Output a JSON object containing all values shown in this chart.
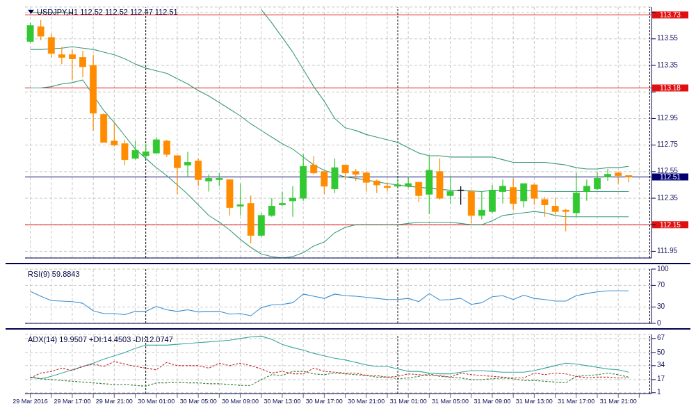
{
  "chart_data": [
    {
      "type": "candlestick",
      "title": "USDJPY,H1  112.52 112.52 112.47 112.51",
      "x": [
        "2016-03-29T13:00",
        "2016-03-29T14:00",
        "2016-03-29T15:00",
        "2016-03-29T16:00",
        "2016-03-29T17:00",
        "2016-03-29T18:00",
        "2016-03-29T19:00",
        "2016-03-29T20:00",
        "2016-03-29T21:00",
        "2016-03-29T22:00",
        "2016-03-29T23:00",
        "2016-03-30T00:00",
        "2016-03-30T01:00",
        "2016-03-30T02:00",
        "2016-03-30T03:00",
        "2016-03-30T04:00",
        "2016-03-30T05:00",
        "2016-03-30T06:00",
        "2016-03-30T07:00",
        "2016-03-30T08:00",
        "2016-03-30T09:00",
        "2016-03-30T10:00",
        "2016-03-30T11:00",
        "2016-03-30T12:00",
        "2016-03-30T13:00",
        "2016-03-30T14:00",
        "2016-03-30T15:00",
        "2016-03-30T16:00",
        "2016-03-30T17:00",
        "2016-03-30T18:00",
        "2016-03-30T19:00",
        "2016-03-30T20:00",
        "2016-03-30T21:00",
        "2016-03-30T22:00",
        "2016-03-30T23:00",
        "2016-03-31T00:00",
        "2016-03-31T01:00",
        "2016-03-31T02:00",
        "2016-03-31T03:00",
        "2016-03-31T04:00",
        "2016-03-31T05:00",
        "2016-03-31T06:00",
        "2016-03-31T07:00",
        "2016-03-31T08:00",
        "2016-03-31T09:00",
        "2016-03-31T10:00",
        "2016-03-31T11:00",
        "2016-03-31T12:00",
        "2016-03-31T13:00",
        "2016-03-31T14:00",
        "2016-03-31T15:00",
        "2016-03-31T16:00",
        "2016-03-31T17:00",
        "2016-03-31T18:00",
        "2016-03-31T19:00",
        "2016-03-31T20:00",
        "2016-03-31T21:00",
        "2016-03-31T22:00"
      ],
      "ohlc": [
        [
          113.53,
          113.67,
          113.52,
          113.65
        ],
        [
          113.64,
          113.69,
          113.54,
          113.57
        ],
        [
          113.56,
          113.59,
          113.41,
          113.44
        ],
        [
          113.43,
          113.49,
          113.36,
          113.41
        ],
        [
          113.43,
          113.47,
          113.24,
          113.4
        ],
        [
          113.41,
          113.46,
          113.26,
          113.34
        ],
        [
          113.35,
          113.43,
          112.86,
          112.99
        ],
        [
          112.98,
          112.99,
          112.77,
          112.77
        ],
        [
          112.78,
          112.92,
          112.74,
          112.75
        ],
        [
          112.76,
          112.79,
          112.6,
          112.64
        ],
        [
          112.65,
          112.78,
          112.64,
          112.71
        ],
        [
          112.67,
          112.76,
          112.65,
          112.7
        ],
        [
          112.69,
          112.81,
          112.69,
          112.79
        ],
        [
          112.78,
          112.79,
          112.66,
          112.68
        ],
        [
          112.67,
          112.67,
          112.38,
          112.58
        ],
        [
          112.6,
          112.7,
          112.51,
          112.62
        ],
        [
          112.63,
          112.65,
          112.44,
          112.49
        ],
        [
          112.48,
          112.53,
          112.4,
          112.5
        ],
        [
          112.49,
          112.54,
          112.44,
          112.5
        ],
        [
          112.49,
          112.49,
          112.22,
          112.28
        ],
        [
          112.29,
          112.46,
          112.22,
          112.3
        ],
        [
          112.31,
          112.37,
          112.01,
          112.07
        ],
        [
          112.07,
          112.24,
          112.06,
          112.22
        ],
        [
          112.22,
          112.35,
          112.21,
          112.29
        ],
        [
          112.3,
          112.4,
          112.29,
          112.31
        ],
        [
          112.33,
          112.44,
          112.21,
          112.35
        ],
        [
          112.35,
          112.68,
          112.33,
          112.59
        ],
        [
          112.6,
          112.67,
          112.53,
          112.54
        ],
        [
          112.55,
          112.55,
          112.38,
          112.44
        ],
        [
          112.42,
          112.65,
          112.39,
          112.58
        ],
        [
          112.6,
          112.6,
          112.49,
          112.54
        ],
        [
          112.55,
          112.57,
          112.48,
          112.53
        ],
        [
          112.54,
          112.55,
          112.4,
          112.47
        ],
        [
          112.48,
          112.49,
          112.39,
          112.45
        ],
        [
          112.44,
          112.47,
          112.4,
          112.43
        ],
        [
          112.44,
          112.5,
          112.44,
          112.45
        ],
        [
          112.44,
          112.51,
          112.43,
          112.46
        ],
        [
          112.47,
          112.47,
          112.32,
          112.37
        ],
        [
          112.38,
          112.67,
          112.23,
          112.56
        ],
        [
          112.55,
          112.65,
          112.34,
          112.35
        ],
        [
          112.37,
          112.52,
          112.31,
          112.4
        ],
        [
          112.41,
          112.44,
          112.3,
          112.41
        ],
        [
          112.4,
          112.4,
          112.16,
          112.22
        ],
        [
          112.22,
          112.4,
          112.19,
          112.26
        ],
        [
          112.25,
          112.45,
          112.24,
          112.41
        ],
        [
          112.4,
          112.49,
          112.31,
          112.44
        ],
        [
          112.43,
          112.5,
          112.26,
          112.31
        ],
        [
          112.33,
          112.46,
          112.28,
          112.46
        ],
        [
          112.45,
          112.46,
          112.3,
          112.35
        ],
        [
          112.34,
          112.36,
          112.21,
          112.3
        ],
        [
          112.29,
          112.35,
          112.22,
          112.25
        ],
        [
          112.26,
          112.27,
          112.1,
          112.25
        ],
        [
          112.24,
          112.54,
          112.21,
          112.39
        ],
        [
          112.4,
          112.49,
          112.33,
          112.44
        ],
        [
          112.42,
          112.55,
          112.41,
          112.5
        ],
        [
          112.51,
          112.57,
          112.48,
          112.53
        ],
        [
          112.54,
          112.55,
          112.46,
          112.52
        ],
        [
          112.52,
          112.52,
          112.47,
          112.51
        ]
      ],
      "colors": [
        "#32c832",
        "#ff8c00",
        "#ff8c00",
        "#ff8c00",
        "#ff8c00",
        "#ff8c00",
        "#ff8c00",
        "#ff8c00",
        "#ff8c00",
        "#ff8c00",
        "#32c832",
        "#32c832",
        "#32c832",
        "#ff8c00",
        "#ff8c00",
        "#32c832",
        "#ff8c00",
        "#32c832",
        "#32c832",
        "#ff8c00",
        "#32c832",
        "#ff8c00",
        "#32c832",
        "#32c832",
        "#32c832",
        "#32c832",
        "#32c832",
        "#ff8c00",
        "#ff8c00",
        "#32c832",
        "#ff8c00",
        "#ff8c00",
        "#ff8c00",
        "#ff8c00",
        "#ff8c00",
        "#32c832",
        "#32c832",
        "#ff8c00",
        "#32c832",
        "#ff8c00",
        "#32c832",
        "#000000",
        "#ff8c00",
        "#32c832",
        "#32c832",
        "#32c832",
        "#ff8c00",
        "#32c832",
        "#ff8c00",
        "#ff8c00",
        "#ff8c00",
        "#ff8c00",
        "#32c832",
        "#32c832",
        "#32c832",
        "#32c832",
        "#ff8c00",
        "#ff8c00"
      ],
      "series": [
        {
          "type": "line",
          "color": "#3a9a78",
          "values": [
            113.75,
            113.75,
            113.75,
            113.75,
            113.74,
            null,
            null,
            null,
            null,
            null,
            null,
            null,
            null,
            null,
            null,
            null,
            null,
            null,
            null,
            null,
            null,
            null,
            113.77,
            113.67,
            113.56,
            113.45,
            113.32,
            113.19,
            113.08,
            112.95,
            112.88,
            112.86,
            112.83,
            112.81,
            112.79,
            112.77,
            112.73,
            112.69,
            112.67,
            112.67,
            112.66,
            112.66,
            112.66,
            112.66,
            112.66,
            112.64,
            112.62,
            112.62,
            112.62,
            112.62,
            112.61,
            112.6,
            112.58,
            112.57,
            112.57,
            112.58,
            112.58,
            112.59
          ]
        },
        {
          "type": "line",
          "color": "#3a9a78",
          "values": [
            113.47,
            113.47,
            null,
            113.48,
            113.49,
            113.48,
            113.47,
            113.45,
            113.43,
            113.4,
            113.36,
            113.33,
            113.31,
            113.29,
            113.25,
            113.21,
            113.16,
            113.12,
            113.07,
            113.02,
            112.97,
            112.91,
            112.86,
            112.81,
            112.76,
            112.72,
            112.66,
            112.6,
            112.56,
            null,
            112.51,
            112.5,
            null,
            null,
            112.46,
            112.45,
            112.44,
            null,
            null,
            null,
            112.41,
            112.41,
            null,
            112.4,
            112.41,
            112.41,
            null,
            112.41,
            null,
            112.4,
            112.4,
            112.4,
            112.4,
            112.4,
            112.4,
            112.4,
            112.4,
            112.4
          ]
        },
        {
          "type": "line",
          "color": "#3a9a78",
          "values": [
            113.18,
            113.18,
            113.19,
            113.21,
            113.22,
            113.24,
            null,
            113.01,
            112.92,
            112.82,
            112.72,
            112.65,
            112.58,
            112.52,
            112.45,
            112.38,
            112.3,
            112.22,
            112.17,
            112.11,
            112.04,
            111.98,
            111.93,
            111.91,
            111.9,
            111.91,
            111.94,
            111.99,
            112.02,
            112.09,
            112.13,
            112.15,
            112.15,
            112.15,
            112.15,
            112.15,
            112.16,
            112.17,
            112.17,
            112.17,
            112.17,
            112.16,
            112.15,
            112.15,
            112.18,
            112.22,
            112.23,
            112.24,
            112.25,
            112.24,
            112.22,
            112.21,
            112.21,
            112.21,
            112.21,
            112.21,
            112.21,
            112.21
          ]
        }
      ],
      "xlim": [
        "2016-03-29T12:30",
        "2016-04-01T00:10"
      ],
      "xticks": [
        {
          "value": "2016-03-29T13:00",
          "label": null
        },
        {
          "value": "2016-03-29T15:00",
          "label": null
        },
        {
          "value": "2016-03-29T17:00",
          "label": null
        },
        {
          "value": "2016-03-29T19:00",
          "label": null
        },
        {
          "value": "2016-03-29T21:00",
          "label": null
        },
        {
          "value": "2016-03-29T23:00",
          "label": null
        },
        {
          "value": "2016-03-30T01:00",
          "label": null
        },
        {
          "value": "2016-03-30T03:00",
          "label": null
        },
        {
          "value": "2016-03-30T05:00",
          "label": null
        },
        {
          "value": "2016-03-30T07:00",
          "label": null
        },
        {
          "value": "2016-03-30T09:00",
          "label": null
        },
        {
          "value": "2016-03-30T11:00",
          "label": null
        },
        {
          "value": "2016-03-30T13:00",
          "label": null
        },
        {
          "value": "2016-03-30T15:00",
          "label": null
        },
        {
          "value": "2016-03-30T17:00",
          "label": null
        },
        {
          "value": "2016-03-30T19:00",
          "label": null
        },
        {
          "value": "2016-03-30T21:00",
          "label": null
        },
        {
          "value": "2016-03-30T23:00",
          "label": null
        },
        {
          "value": "2016-03-31T01:00",
          "label": null
        },
        {
          "value": "2016-03-31T03:00",
          "label": null
        },
        {
          "value": "2016-03-31T05:00",
          "label": null
        },
        {
          "value": "2016-03-31T07:00",
          "label": null
        },
        {
          "value": "2016-03-31T09:00",
          "label": null
        },
        {
          "value": "2016-03-31T11:00",
          "label": null
        },
        {
          "value": "2016-03-31T13:00",
          "label": null
        },
        {
          "value": "2016-03-31T15:00",
          "label": null
        },
        {
          "value": "2016-03-31T17:00",
          "label": null
        },
        {
          "value": "2016-03-31T19:00",
          "label": null
        },
        {
          "value": "2016-03-31T21:00",
          "label": null
        },
        {
          "value": "2016-03-31T23:00",
          "label": null
        }
      ],
      "ylim": [
        111.9,
        113.79
      ],
      "yticks": [
        111.95,
        {
          "value": 112.15,
          "label": null
        },
        112.35,
        112.55,
        112.75,
        112.95,
        {
          "value": 113.15,
          "label": null
        },
        113.35,
        113.55,
        {
          "value": 113.75,
          "label": null
        }
      ],
      "grid": true,
      "tick_labels": "y",
      "ref_lines": [
        {
          "axis": "y",
          "value": 113.73,
          "label": "113.73",
          "color": "#e01010"
        },
        {
          "axis": "y",
          "value": 113.18,
          "label": "113.18",
          "color": "#e01010"
        },
        {
          "axis": "y",
          "value": 112.15,
          "label": "112.15",
          "color": "#e01010"
        },
        {
          "axis": "y",
          "value": 112.51,
          "label": "112.51",
          "color": "#000070"
        },
        {
          "axis": "x",
          "value": "2016-03-30T00:00",
          "color": "#000000",
          "line_style": "dashed"
        },
        {
          "axis": "x",
          "value": "2016-03-31T00:00",
          "color": "#000000",
          "line_style": "dashed"
        },
        {
          "axis": "x",
          "value": "2016-04-01T00:00",
          "color": "#000000",
          "line_style": "dashed"
        }
      ]
    },
    {
      "type": "line",
      "title": "RSI(9) 59.8843",
      "x": [
        "2016-03-29T13:00",
        "2016-03-29T14:00",
        "2016-03-29T15:00",
        "2016-03-29T16:00",
        "2016-03-29T17:00",
        "2016-03-29T18:00",
        "2016-03-29T19:00",
        "2016-03-29T20:00",
        "2016-03-29T21:00",
        "2016-03-29T22:00",
        "2016-03-29T23:00",
        "2016-03-30T00:00",
        "2016-03-30T01:00",
        "2016-03-30T02:00",
        "2016-03-30T03:00",
        "2016-03-30T04:00",
        "2016-03-30T05:00",
        "2016-03-30T06:00",
        "2016-03-30T07:00",
        "2016-03-30T08:00",
        "2016-03-30T09:00",
        "2016-03-30T10:00",
        "2016-03-30T11:00",
        "2016-03-30T12:00",
        "2016-03-30T13:00",
        "2016-03-30T14:00",
        "2016-03-30T15:00",
        "2016-03-30T16:00",
        "2016-03-30T17:00",
        "2016-03-30T18:00",
        "2016-03-30T19:00",
        "2016-03-30T20:00",
        "2016-03-30T21:00",
        "2016-03-30T22:00",
        "2016-03-30T23:00",
        "2016-03-31T00:00",
        "2016-03-31T01:00",
        "2016-03-31T02:00",
        "2016-03-31T03:00",
        "2016-03-31T04:00",
        "2016-03-31T05:00",
        "2016-03-31T06:00",
        "2016-03-31T07:00",
        "2016-03-31T08:00",
        "2016-03-31T09:00",
        "2016-03-31T10:00",
        "2016-03-31T11:00",
        "2016-03-31T12:00",
        "2016-03-31T13:00",
        "2016-03-31T14:00",
        "2016-03-31T15:00",
        "2016-03-31T16:00",
        "2016-03-31T17:00",
        "2016-03-31T18:00",
        "2016-03-31T19:00",
        "2016-03-31T20:00",
        "2016-03-31T21:00",
        "2016-03-31T22:00"
      ],
      "series": [
        {
          "color": "#3d8fd0",
          "values": [
            59,
            50,
            42,
            41,
            40,
            37,
            23,
            18,
            18,
            16,
            22,
            22,
            31,
            25,
            22,
            25,
            21,
            22,
            22,
            17,
            18,
            14,
            29,
            34,
            35,
            38,
            54,
            50,
            46,
            54,
            51,
            50,
            48,
            46,
            44,
            44,
            46,
            40,
            55,
            43,
            44,
            46,
            35,
            38,
            49,
            51,
            44,
            52,
            46,
            44,
            41,
            41,
            51,
            55,
            58,
            60,
            60,
            60
          ]
        }
      ],
      "xlim": [
        "2016-03-29T12:30",
        "2016-04-01T00:10"
      ],
      "xticks": [
        {
          "value": "2016-03-29T13:00",
          "label": null
        },
        {
          "value": "2016-03-29T15:00",
          "label": null
        },
        {
          "value": "2016-03-29T17:00",
          "label": null
        },
        {
          "value": "2016-03-29T19:00",
          "label": null
        },
        {
          "value": "2016-03-29T21:00",
          "label": null
        },
        {
          "value": "2016-03-29T23:00",
          "label": null
        },
        {
          "value": "2016-03-30T01:00",
          "label": null
        },
        {
          "value": "2016-03-30T03:00",
          "label": null
        },
        {
          "value": "2016-03-30T05:00",
          "label": null
        },
        {
          "value": "2016-03-30T07:00",
          "label": null
        },
        {
          "value": "2016-03-30T09:00",
          "label": null
        },
        {
          "value": "2016-03-30T11:00",
          "label": null
        },
        {
          "value": "2016-03-30T13:00",
          "label": null
        },
        {
          "value": "2016-03-30T15:00",
          "label": null
        },
        {
          "value": "2016-03-30T17:00",
          "label": null
        },
        {
          "value": "2016-03-30T19:00",
          "label": null
        },
        {
          "value": "2016-03-30T21:00",
          "label": null
        },
        {
          "value": "2016-03-30T23:00",
          "label": null
        },
        {
          "value": "2016-03-31T01:00",
          "label": null
        },
        {
          "value": "2016-03-31T03:00",
          "label": null
        },
        {
          "value": "2016-03-31T05:00",
          "label": null
        },
        {
          "value": "2016-03-31T07:00",
          "label": null
        },
        {
          "value": "2016-03-31T09:00",
          "label": null
        },
        {
          "value": "2016-03-31T11:00",
          "label": null
        },
        {
          "value": "2016-03-31T13:00",
          "label": null
        },
        {
          "value": "2016-03-31T15:00",
          "label": null
        },
        {
          "value": "2016-03-31T17:00",
          "label": null
        },
        {
          "value": "2016-03-31T19:00",
          "label": null
        },
        {
          "value": "2016-03-31T21:00",
          "label": null
        },
        {
          "value": "2016-03-31T23:00",
          "label": null
        }
      ],
      "ylim": [
        0,
        100
      ],
      "yticks": [
        0,
        30,
        70,
        100
      ],
      "grid": true,
      "tick_labels": "y",
      "ref_lines": [
        {
          "axis": "x",
          "value": "2016-03-30T00:00",
          "color": "#000000",
          "line_style": "dashed"
        },
        {
          "axis": "x",
          "value": "2016-03-31T00:00",
          "color": "#000000",
          "line_style": "dashed"
        },
        {
          "axis": "x",
          "value": "2016-04-01T00:00",
          "color": "#000000",
          "line_style": "dashed"
        }
      ]
    },
    {
      "type": "line",
      "title": "ADX(14) 19.9507 +DI:14.4503 -DI:12.0747",
      "x": [
        "2016-03-29T13:00",
        "2016-03-29T14:00",
        "2016-03-29T15:00",
        "2016-03-29T16:00",
        "2016-03-29T17:00",
        "2016-03-29T18:00",
        "2016-03-29T19:00",
        "2016-03-29T20:00",
        "2016-03-29T21:00",
        "2016-03-29T22:00",
        "2016-03-29T23:00",
        "2016-03-30T00:00",
        "2016-03-30T01:00",
        "2016-03-30T02:00",
        "2016-03-30T03:00",
        "2016-03-30T04:00",
        "2016-03-30T05:00",
        "2016-03-30T06:00",
        "2016-03-30T07:00",
        "2016-03-30T08:00",
        "2016-03-30T09:00",
        "2016-03-30T10:00",
        "2016-03-30T11:00",
        "2016-03-30T12:00",
        "2016-03-30T13:00",
        "2016-03-30T14:00",
        "2016-03-30T15:00",
        "2016-03-30T16:00",
        "2016-03-30T17:00",
        "2016-03-30T18:00",
        "2016-03-30T19:00",
        "2016-03-30T20:00",
        "2016-03-30T21:00",
        "2016-03-30T22:00",
        "2016-03-30T23:00",
        "2016-03-31T00:00",
        "2016-03-31T01:00",
        "2016-03-31T02:00",
        "2016-03-31T03:00",
        "2016-03-31T04:00",
        "2016-03-31T05:00",
        "2016-03-31T06:00",
        "2016-03-31T07:00",
        "2016-03-31T08:00",
        "2016-03-31T09:00",
        "2016-03-31T10:00",
        "2016-03-31T11:00",
        "2016-03-31T12:00",
        "2016-03-31T13:00",
        "2016-03-31T14:00",
        "2016-03-31T15:00",
        "2016-03-31T16:00",
        "2016-03-31T17:00",
        "2016-03-31T18:00",
        "2016-03-31T19:00",
        "2016-03-31T20:00",
        "2016-03-31T21:00",
        "2016-03-31T22:00"
      ],
      "series": [
        {
          "color": "#3aa6a0",
          "values": [
            20,
            18,
            21,
            25,
            29,
            33,
            37,
            42,
            46,
            50,
            55,
            59,
            59,
            59,
            60,
            61,
            62,
            63,
            64,
            65,
            67,
            69,
            70,
            66,
            60,
            56,
            53,
            49,
            46,
            43,
            41,
            38,
            35,
            33,
            33,
            30,
            27,
            27,
            25,
            24,
            24,
            26,
            28,
            28,
            27,
            26,
            26,
            26,
            28,
            31,
            34,
            37,
            36,
            34,
            32,
            30,
            29,
            26
          ]
        },
        {
          "color": "#2e7d32",
          "line_style": "dashed",
          "values": [
            20,
            18,
            17,
            16,
            15,
            14,
            13,
            12,
            11,
            11,
            10,
            9,
            13,
            13,
            14,
            13,
            13,
            12,
            12,
            11,
            10,
            10,
            17,
            23,
            22,
            27,
            27,
            24,
            23,
            25,
            24,
            23,
            22,
            20,
            20,
            18,
            19,
            21,
            24,
            21,
            20,
            19,
            17,
            17,
            18,
            19,
            18,
            16,
            16,
            15,
            14,
            13,
            21,
            22,
            23,
            25,
            23,
            20
          ]
        },
        {
          "color": "#c62828",
          "line_style": "dashed",
          "values": [
            19,
            25,
            27,
            31,
            28,
            33,
            36,
            33,
            39,
            36,
            33,
            31,
            29,
            38,
            34,
            34,
            34,
            31,
            37,
            34,
            37,
            34,
            30,
            25,
            27,
            24,
            24,
            31,
            27,
            26,
            25,
            25,
            22,
            22,
            20,
            21,
            24,
            23,
            22,
            22,
            20,
            25,
            23,
            22,
            21,
            20,
            19,
            19,
            25,
            23,
            25,
            24,
            21,
            19,
            20,
            20,
            19,
            19
          ]
        }
      ],
      "xlim": [
        "2016-03-29T12:30",
        "2016-04-01T00:10"
      ],
      "xticks": [
        {
          "value": "2016-03-29T13:00",
          "label": "29 Mar 2016"
        },
        {
          "value": "2016-03-29T15:00",
          "label": null
        },
        {
          "value": "2016-03-29T17:00",
          "label": "29 Mar 17:00"
        },
        {
          "value": "2016-03-29T19:00",
          "label": null
        },
        {
          "value": "2016-03-29T21:00",
          "label": "29 Mar 21:00"
        },
        {
          "value": "2016-03-29T23:00",
          "label": null
        },
        {
          "value": "2016-03-30T01:00",
          "label": "30 Mar 01:00"
        },
        {
          "value": "2016-03-30T03:00",
          "label": null
        },
        {
          "value": "2016-03-30T05:00",
          "label": "30 Mar 05:00"
        },
        {
          "value": "2016-03-30T07:00",
          "label": null
        },
        {
          "value": "2016-03-30T09:00",
          "label": "30 Mar 09:00"
        },
        {
          "value": "2016-03-30T11:00",
          "label": null
        },
        {
          "value": "2016-03-30T13:00",
          "label": "30 Mar 13:00"
        },
        {
          "value": "2016-03-30T15:00",
          "label": null
        },
        {
          "value": "2016-03-30T17:00",
          "label": "30 Mar 17:00"
        },
        {
          "value": "2016-03-30T19:00",
          "label": null
        },
        {
          "value": "2016-03-30T21:00",
          "label": "30 Mar 21:00"
        },
        {
          "value": "2016-03-30T23:00",
          "label": null
        },
        {
          "value": "2016-03-31T01:00",
          "label": "31 Mar 01:00"
        },
        {
          "value": "2016-03-31T03:00",
          "label": null
        },
        {
          "value": "2016-03-31T05:00",
          "label": "31 Mar 05:00"
        },
        {
          "value": "2016-03-31T07:00",
          "label": null
        },
        {
          "value": "2016-03-31T09:00",
          "label": "31 Mar 09:00"
        },
        {
          "value": "2016-03-31T11:00",
          "label": null
        },
        {
          "value": "2016-03-31T13:00",
          "label": "31 Mar 13:00"
        },
        {
          "value": "2016-03-31T15:00",
          "label": null
        },
        {
          "value": "2016-03-31T17:00",
          "label": "31 Mar 17:00"
        },
        {
          "value": "2016-03-31T19:00",
          "label": null
        },
        {
          "value": "2016-03-31T21:00",
          "label": "31 Mar 21:00"
        },
        {
          "value": "2016-03-31T23:00",
          "label": null
        }
      ],
      "ylim": [
        0,
        72
      ],
      "yticks": [
        1,
        17,
        34,
        50,
        67
      ],
      "grid": true,
      "ref_lines": [
        {
          "axis": "x",
          "value": "2016-03-30T00:00",
          "color": "#000000",
          "line_style": "dashed"
        },
        {
          "axis": "x",
          "value": "2016-03-31T00:00",
          "color": "#000000",
          "line_style": "dashed"
        },
        {
          "axis": "x",
          "value": "2016-04-01T00:00",
          "color": "#000000",
          "line_style": "dashed"
        }
      ]
    }
  ]
}
